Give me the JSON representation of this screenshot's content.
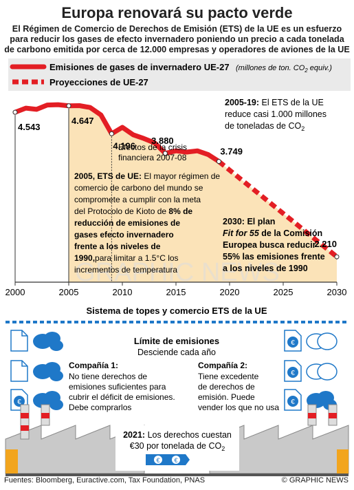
{
  "header": {
    "title": "Europa renovará su pacto verde",
    "subtitle": "El Régimen de Comercio de Derechos de Emisión (ETS) de la UE es un esfuerzo para reducir los gases de efecto invernadero poniendo un precio a cada tonelada de carbono emitida por cerca de 12.000 empresas y operadores de aviones de la UE"
  },
  "legend": {
    "emissions_label": "Emisiones de gases de invernadero UE-27",
    "units_label": "(millones de ton. CO",
    "units_sub": "2",
    "units_tail": " equiv.)",
    "projections_label": "Proyecciones de UE-27"
  },
  "chart_data": {
    "type": "line",
    "title": "Emisiones de gases de invernadero UE-27",
    "units": "millones de ton. CO2 equiv.",
    "x_ticks": [
      2000,
      2005,
      2010,
      2015,
      2020,
      2025,
      2030
    ],
    "xlim": [
      2000,
      2030
    ],
    "ylim": [
      1800,
      4800
    ],
    "series": [
      {
        "name": "Emisiones de gases de invernadero UE-27",
        "style": "solid",
        "color": "#e31e24",
        "x": [
          2000,
          2001,
          2002,
          2003,
          2004,
          2005,
          2006,
          2007,
          2008,
          2009,
          2010,
          2011,
          2012,
          2013,
          2014,
          2015,
          2016,
          2017,
          2018,
          2019
        ],
        "y": [
          4543,
          4610,
          4590,
          4660,
          4665,
          4647,
          4650,
          4620,
          4500,
          4196,
          4300,
          4180,
          4120,
          4050,
          3880,
          3920,
          3900,
          3920,
          3860,
          3749
        ]
      },
      {
        "name": "Proyecciones de UE-27",
        "style": "dashed",
        "color": "#e31e24",
        "x": [
          2019,
          2030
        ],
        "y": [
          3749,
          2210
        ]
      }
    ],
    "value_labels": [
      {
        "x": 2000,
        "y": 4543,
        "text": "4.543"
      },
      {
        "x": 2005,
        "y": 4647,
        "text": "4.647"
      },
      {
        "x": 2009,
        "y": 4196,
        "text": "4.196"
      },
      {
        "x": 2014,
        "y": 3880,
        "text": "3.880"
      },
      {
        "x": 2019,
        "y": 3749,
        "text": "3.749"
      },
      {
        "x": 2030,
        "y": 2210,
        "text": "2.210"
      }
    ]
  },
  "annotations": {
    "crisis": [
      "Efectos de la crisis",
      "financiera 2007-08"
    ],
    "ets2005_title": "2005, ETS de UE:",
    "ets2005_lines": [
      "comercio de carbono del mundo se",
      "compromete a cumplir con la meta",
      "del Protocolo de Kioto de"
    ],
    "ets2005_first": " El mayor régimen de",
    "ets2005_pct": " 8% de",
    "ets2005_bold": [
      "reducción de emisiones de",
      "gases efecto invernadero",
      "frente a los niveles de"
    ],
    "ets2005_1990": "1990,",
    "ets2005_tail1": "para limitar a 1.5°C los",
    "ets2005_tail2": "incrementos de temperatura",
    "ets1519_title": "2005-19:",
    "ets1519_lines": [
      " El ETS de la UE",
      "reduce casi 1.000 millones",
      "de toneladas de CO"
    ],
    "ets1519_sub": "2",
    "plan_title": "2030: El plan",
    "plan_fit": "Fit for 55",
    "plan_lines": [
      " de la Comisión",
      "Europea busca reducir",
      "55% las emisiones frente",
      "a los niveles de 1990"
    ],
    "watermark": "GRAPHIC NEWS"
  },
  "system": {
    "title": "Sistema de topes y comercio  ETS de la UE",
    "limit_title": "Límite de emisiones",
    "limit_sub": "Desciende cada año",
    "company1_title": "Compañía 1:",
    "company1_text": [
      "No tiene derechos de",
      "emisiones suficientes para",
      "cubrir el déficit de emisiones.",
      "Debe comprarlos"
    ],
    "company2_title": "Compañía 2:",
    "company2_text": [
      "Tiene excedente",
      "de derechos de",
      "emisión. Puede",
      "vender los que no usa"
    ],
    "price_year": "2021:",
    "price_text": " Los derechos cuestan",
    "price_line2": "€30 por tonelada de CO",
    "price_sub": "2",
    "euro_glyph": "€"
  },
  "footer": {
    "sources": "Fuentes: Bloomberg, Euractive.com, Tax Foundation, PNAS",
    "credit": "© GRAPHIC NEWS"
  },
  "colors": {
    "red": "#e31e24",
    "area": "#fbe3b8",
    "blue": "#1f78c8",
    "cloud": "#1f78c8",
    "navy": "#1d4f8a"
  }
}
